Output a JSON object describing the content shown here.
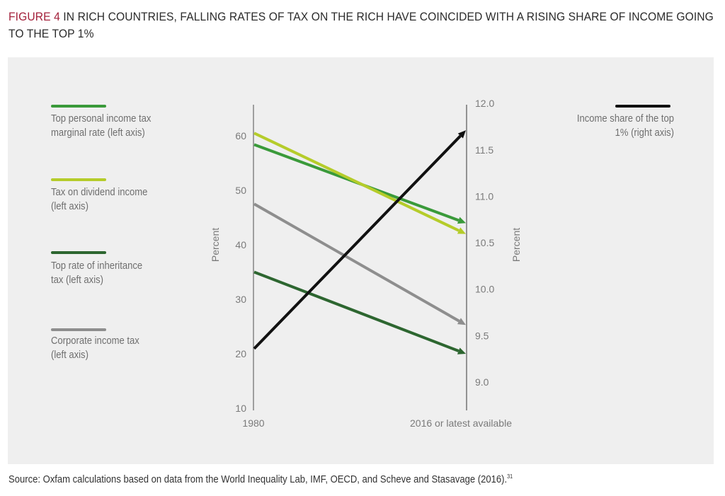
{
  "title": {
    "figure_label": "FIGURE 4",
    "text": " IN RICH COUNTRIES, FALLING RATES OF TAX ON THE RICH HAVE COINCIDED WITH A RISING SHARE OF INCOME GOING TO THE TOP 1%"
  },
  "source": {
    "text": "Source: Oxfam calculations based on data from the World Inequality Lab, IMF, OECD, and Scheve and Stasavage (2016).",
    "footnote": "31"
  },
  "colors": {
    "title_accent": "#a3213b",
    "panel_bg": "#efefef",
    "axis": "#8a8a8a"
  },
  "chart_data": {
    "type": "line",
    "title": "In rich countries, falling rates of tax on the rich have coincided with a rising share of income going to the top 1%",
    "x": [
      "1980",
      "2016 or latest available"
    ],
    "left_axis": {
      "label": "Percent",
      "range": [
        10,
        65
      ],
      "ticks": [
        10,
        20,
        30,
        40,
        50,
        60
      ]
    },
    "right_axis": {
      "label": "Percent",
      "range": [
        8.7,
        12.0
      ],
      "ticks": [
        "9.0",
        "9.5",
        "10.0",
        "10.5",
        "11.0",
        "11.5",
        "12.0"
      ]
    },
    "grid": false,
    "series": [
      {
        "name": "Top personal income tax marginal rate (left axis)",
        "axis": "left",
        "color": "#3a9a3a",
        "values": [
          58.4,
          44.0
        ]
      },
      {
        "name": "Tax on dividend income (left axis)",
        "axis": "left",
        "color": "#b5cc2a",
        "values": [
          60.5,
          42.0
        ]
      },
      {
        "name": "Top rate of inheritance tax (left axis)",
        "axis": "left",
        "color": "#2d6630",
        "values": [
          35.0,
          20.0
        ]
      },
      {
        "name": "Corporate income tax (left axis)",
        "axis": "left",
        "color": "#8e8e8e",
        "values": [
          47.5,
          25.3
        ]
      },
      {
        "name": "Income share of the top 1% (right axis)",
        "axis": "right",
        "color": "#111111",
        "values": [
          9.36,
          11.71
        ]
      }
    ]
  },
  "legend": {
    "left": [
      {
        "text": "Top personal income tax\nmarginal rate (left axis)",
        "color": "#3a9a3a"
      },
      {
        "text": "Tax on dividend income\n(left axis)",
        "color": "#b5cc2a"
      },
      {
        "text": "Top rate of inheritance\ntax (left axis)",
        "color": "#2d6630"
      },
      {
        "text": "Corporate income tax\n(left axis)",
        "color": "#8e8e8e"
      }
    ],
    "right": [
      {
        "text": "Income share of the top\n1% (right axis)",
        "color": "#111111"
      }
    ]
  }
}
